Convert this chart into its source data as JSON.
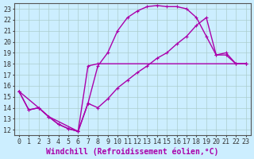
{
  "xlabel": "Windchill (Refroidissement éolien,°C)",
  "bg_color": "#cceeff",
  "line_color": "#aa00aa",
  "grid_color": "#aadddd",
  "xlim": [
    -0.5,
    23.5
  ],
  "ylim": [
    11.5,
    23.5
  ],
  "xticks": [
    0,
    1,
    2,
    3,
    4,
    5,
    6,
    7,
    8,
    9,
    10,
    11,
    12,
    13,
    14,
    15,
    16,
    17,
    18,
    19,
    20,
    21,
    22,
    23
  ],
  "yticks": [
    12,
    13,
    14,
    15,
    16,
    17,
    18,
    19,
    20,
    21,
    22,
    23
  ],
  "line1_x": [
    0,
    1,
    2,
    3,
    4,
    5,
    6,
    7,
    8,
    9,
    10,
    11,
    12,
    13,
    14,
    15,
    16,
    17,
    18,
    19,
    20,
    21,
    22,
    23
  ],
  "line1_y": [
    15.5,
    13.8,
    14.0,
    13.2,
    12.5,
    12.1,
    11.85,
    14.4,
    17.8,
    19.0,
    21.0,
    22.2,
    22.8,
    23.2,
    23.3,
    23.2,
    23.2,
    23.0,
    22.2,
    20.5,
    18.8,
    18.8,
    18.0,
    18.0
  ],
  "line2_x": [
    0,
    2,
    3,
    6,
    7,
    8,
    23
  ],
  "line2_y": [
    15.5,
    14.0,
    13.2,
    11.85,
    17.8,
    18.0,
    18.0
  ],
  "line3_x": [
    0,
    1,
    2,
    3,
    4,
    5,
    6,
    7,
    8,
    9,
    10,
    11,
    12,
    13,
    14,
    15,
    16,
    17,
    18,
    19,
    20,
    21,
    22,
    23
  ],
  "line3_y": [
    15.5,
    13.8,
    14.0,
    13.2,
    12.5,
    12.1,
    11.85,
    14.4,
    14.0,
    14.8,
    15.8,
    16.5,
    17.2,
    17.8,
    18.5,
    19.0,
    19.8,
    20.5,
    21.5,
    22.2,
    18.8,
    19.0,
    18.0,
    18.0
  ],
  "marker_size": 3.5,
  "linewidth": 1.0,
  "font_size": 7,
  "tick_font_size": 6
}
